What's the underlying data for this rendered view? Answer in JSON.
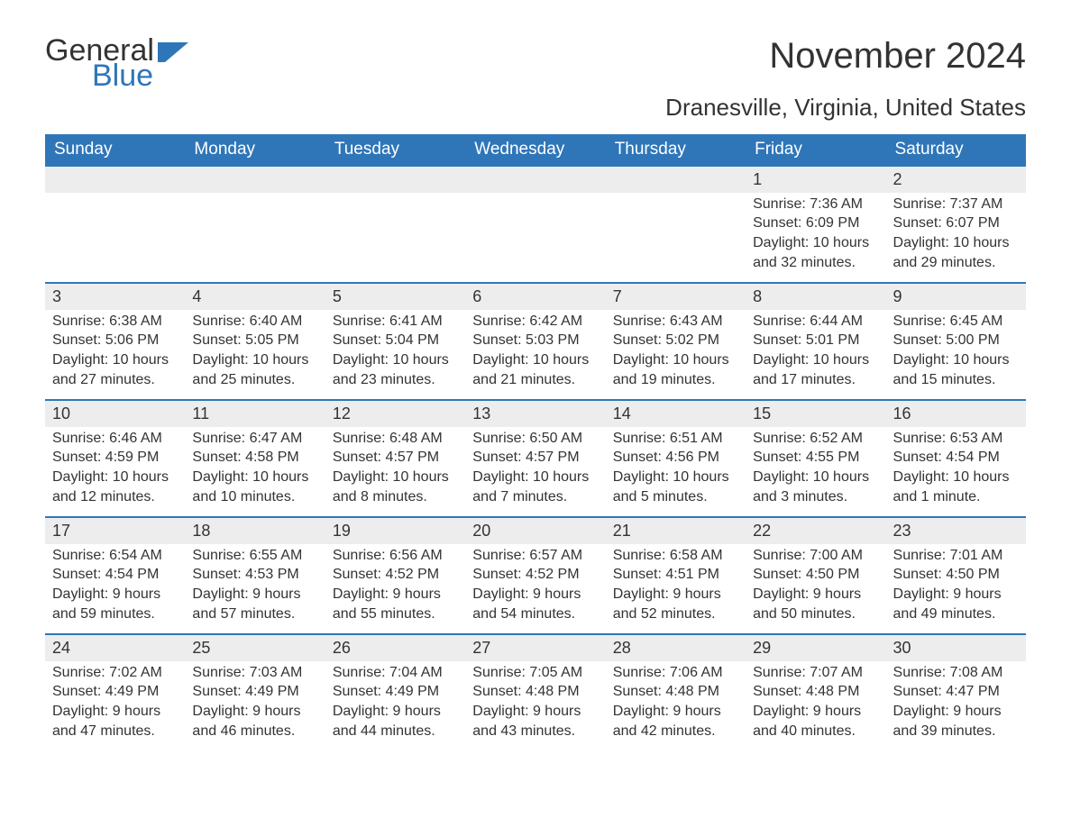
{
  "brand": {
    "general": "General",
    "blue": "Blue"
  },
  "title": "November 2024",
  "subtitle": "Dranesville, Virginia, United States",
  "colors": {
    "accent": "#2f76b9",
    "header_bg": "#2f76b9",
    "header_text": "#ffffff",
    "daynum_bg": "#ededed",
    "text": "#333333",
    "page_bg": "#ffffff"
  },
  "weekdays": [
    "Sunday",
    "Monday",
    "Tuesday",
    "Wednesday",
    "Thursday",
    "Friday",
    "Saturday"
  ],
  "weeks": [
    [
      {
        "empty": true
      },
      {
        "empty": true
      },
      {
        "empty": true
      },
      {
        "empty": true
      },
      {
        "empty": true
      },
      {
        "num": "1",
        "sunrise": "Sunrise: 7:36 AM",
        "sunset": "Sunset: 6:09 PM",
        "daylight": "Daylight: 10 hours and 32 minutes."
      },
      {
        "num": "2",
        "sunrise": "Sunrise: 7:37 AM",
        "sunset": "Sunset: 6:07 PM",
        "daylight": "Daylight: 10 hours and 29 minutes."
      }
    ],
    [
      {
        "num": "3",
        "sunrise": "Sunrise: 6:38 AM",
        "sunset": "Sunset: 5:06 PM",
        "daylight": "Daylight: 10 hours and 27 minutes."
      },
      {
        "num": "4",
        "sunrise": "Sunrise: 6:40 AM",
        "sunset": "Sunset: 5:05 PM",
        "daylight": "Daylight: 10 hours and 25 minutes."
      },
      {
        "num": "5",
        "sunrise": "Sunrise: 6:41 AM",
        "sunset": "Sunset: 5:04 PM",
        "daylight": "Daylight: 10 hours and 23 minutes."
      },
      {
        "num": "6",
        "sunrise": "Sunrise: 6:42 AM",
        "sunset": "Sunset: 5:03 PM",
        "daylight": "Daylight: 10 hours and 21 minutes."
      },
      {
        "num": "7",
        "sunrise": "Sunrise: 6:43 AM",
        "sunset": "Sunset: 5:02 PM",
        "daylight": "Daylight: 10 hours and 19 minutes."
      },
      {
        "num": "8",
        "sunrise": "Sunrise: 6:44 AM",
        "sunset": "Sunset: 5:01 PM",
        "daylight": "Daylight: 10 hours and 17 minutes."
      },
      {
        "num": "9",
        "sunrise": "Sunrise: 6:45 AM",
        "sunset": "Sunset: 5:00 PM",
        "daylight": "Daylight: 10 hours and 15 minutes."
      }
    ],
    [
      {
        "num": "10",
        "sunrise": "Sunrise: 6:46 AM",
        "sunset": "Sunset: 4:59 PM",
        "daylight": "Daylight: 10 hours and 12 minutes."
      },
      {
        "num": "11",
        "sunrise": "Sunrise: 6:47 AM",
        "sunset": "Sunset: 4:58 PM",
        "daylight": "Daylight: 10 hours and 10 minutes."
      },
      {
        "num": "12",
        "sunrise": "Sunrise: 6:48 AM",
        "sunset": "Sunset: 4:57 PM",
        "daylight": "Daylight: 10 hours and 8 minutes."
      },
      {
        "num": "13",
        "sunrise": "Sunrise: 6:50 AM",
        "sunset": "Sunset: 4:57 PM",
        "daylight": "Daylight: 10 hours and 7 minutes."
      },
      {
        "num": "14",
        "sunrise": "Sunrise: 6:51 AM",
        "sunset": "Sunset: 4:56 PM",
        "daylight": "Daylight: 10 hours and 5 minutes."
      },
      {
        "num": "15",
        "sunrise": "Sunrise: 6:52 AM",
        "sunset": "Sunset: 4:55 PM",
        "daylight": "Daylight: 10 hours and 3 minutes."
      },
      {
        "num": "16",
        "sunrise": "Sunrise: 6:53 AM",
        "sunset": "Sunset: 4:54 PM",
        "daylight": "Daylight: 10 hours and 1 minute."
      }
    ],
    [
      {
        "num": "17",
        "sunrise": "Sunrise: 6:54 AM",
        "sunset": "Sunset: 4:54 PM",
        "daylight": "Daylight: 9 hours and 59 minutes."
      },
      {
        "num": "18",
        "sunrise": "Sunrise: 6:55 AM",
        "sunset": "Sunset: 4:53 PM",
        "daylight": "Daylight: 9 hours and 57 minutes."
      },
      {
        "num": "19",
        "sunrise": "Sunrise: 6:56 AM",
        "sunset": "Sunset: 4:52 PM",
        "daylight": "Daylight: 9 hours and 55 minutes."
      },
      {
        "num": "20",
        "sunrise": "Sunrise: 6:57 AM",
        "sunset": "Sunset: 4:52 PM",
        "daylight": "Daylight: 9 hours and 54 minutes."
      },
      {
        "num": "21",
        "sunrise": "Sunrise: 6:58 AM",
        "sunset": "Sunset: 4:51 PM",
        "daylight": "Daylight: 9 hours and 52 minutes."
      },
      {
        "num": "22",
        "sunrise": "Sunrise: 7:00 AM",
        "sunset": "Sunset: 4:50 PM",
        "daylight": "Daylight: 9 hours and 50 minutes."
      },
      {
        "num": "23",
        "sunrise": "Sunrise: 7:01 AM",
        "sunset": "Sunset: 4:50 PM",
        "daylight": "Daylight: 9 hours and 49 minutes."
      }
    ],
    [
      {
        "num": "24",
        "sunrise": "Sunrise: 7:02 AM",
        "sunset": "Sunset: 4:49 PM",
        "daylight": "Daylight: 9 hours and 47 minutes."
      },
      {
        "num": "25",
        "sunrise": "Sunrise: 7:03 AM",
        "sunset": "Sunset: 4:49 PM",
        "daylight": "Daylight: 9 hours and 46 minutes."
      },
      {
        "num": "26",
        "sunrise": "Sunrise: 7:04 AM",
        "sunset": "Sunset: 4:49 PM",
        "daylight": "Daylight: 9 hours and 44 minutes."
      },
      {
        "num": "27",
        "sunrise": "Sunrise: 7:05 AM",
        "sunset": "Sunset: 4:48 PM",
        "daylight": "Daylight: 9 hours and 43 minutes."
      },
      {
        "num": "28",
        "sunrise": "Sunrise: 7:06 AM",
        "sunset": "Sunset: 4:48 PM",
        "daylight": "Daylight: 9 hours and 42 minutes."
      },
      {
        "num": "29",
        "sunrise": "Sunrise: 7:07 AM",
        "sunset": "Sunset: 4:48 PM",
        "daylight": "Daylight: 9 hours and 40 minutes."
      },
      {
        "num": "30",
        "sunrise": "Sunrise: 7:08 AM",
        "sunset": "Sunset: 4:47 PM",
        "daylight": "Daylight: 9 hours and 39 minutes."
      }
    ]
  ]
}
